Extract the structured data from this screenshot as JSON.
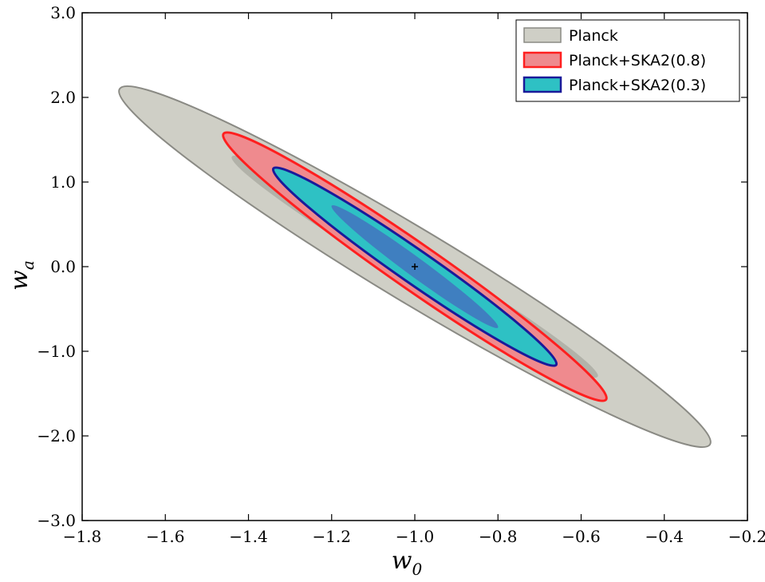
{
  "chart_data": {
    "type": "contour",
    "xlabel": "w",
    "xlabel_sub": "0",
    "ylabel": "w",
    "ylabel_sub": "a",
    "xlim": [
      -1.8,
      -0.2
    ],
    "ylim": [
      -3.0,
      3.0
    ],
    "x_ticks": [
      -1.8,
      -1.6,
      -1.4,
      -1.2,
      -1.0,
      -0.8,
      -0.6,
      -0.4,
      -0.2
    ],
    "x_tick_labels": [
      "−1.8",
      "−1.6",
      "−1.4",
      "−1.2",
      "−1.0",
      "−0.8",
      "−0.6",
      "−0.4",
      "−0.2"
    ],
    "y_ticks": [
      3.0,
      2.0,
      1.0,
      0.0,
      -1.0,
      -2.0,
      -3.0
    ],
    "y_tick_labels": [
      "3.0",
      "2.0",
      "1.0",
      "0.0",
      "−1.0",
      "−2.0",
      "−3.0"
    ],
    "grid": false,
    "legend_position": "top-right",
    "fiducial": {
      "x": -1.0,
      "y": 0.0,
      "marker": "+"
    },
    "series": [
      {
        "name": "Planck",
        "fill": "#cfcfc6",
        "edge": "#8a8a84",
        "ellipses": [
          {
            "level": "2-sigma",
            "center": [
              -1.0,
              0.0
            ],
            "extreme_a": [
              -1.71,
              2.1
            ],
            "extreme_b": [
              -0.29,
              -2.1
            ],
            "half_width": 0.175
          },
          {
            "level": "1-sigma",
            "center": [
              -1.0,
              0.0
            ],
            "extreme_a": [
              -1.44,
              1.3
            ],
            "extreme_b": [
              -0.56,
              -1.3
            ],
            "half_width": 0.085
          }
        ]
      },
      {
        "name": "Planck+SKA2(0.8)",
        "fill": "#ef8a8e",
        "edge": "#ff1f1f",
        "ellipses": [
          {
            "level": "2-sigma",
            "center": [
              -1.0,
              0.0
            ],
            "extreme_a": [
              -1.46,
              1.57
            ],
            "extreme_b": [
              -0.54,
              -1.57
            ],
            "half_width": 0.11
          },
          {
            "level": "1-sigma",
            "center": [
              -1.0,
              0.0
            ],
            "extreme_a": [
              -1.3,
              0.92
            ],
            "extreme_b": [
              -0.7,
              -0.92
            ],
            "half_width": 0.06
          }
        ]
      },
      {
        "name": "Planck+SKA2(0.3)",
        "fill": "#2ec1c4",
        "edge": "#1a1a9a",
        "ellipses": [
          {
            "level": "2-sigma",
            "center": [
              -1.0,
              0.0
            ],
            "extreme_a": [
              -1.34,
              1.16
            ],
            "extreme_b": [
              -0.66,
              -1.16
            ],
            "half_width": 0.08
          },
          {
            "level": "1-sigma",
            "center": [
              -1.0,
              0.0
            ],
            "extreme_a": [
              -1.2,
              0.72
            ],
            "extreme_b": [
              -0.8,
              -0.72
            ],
            "half_width": 0.045,
            "fill": "#3f7fc0"
          }
        ]
      }
    ]
  }
}
